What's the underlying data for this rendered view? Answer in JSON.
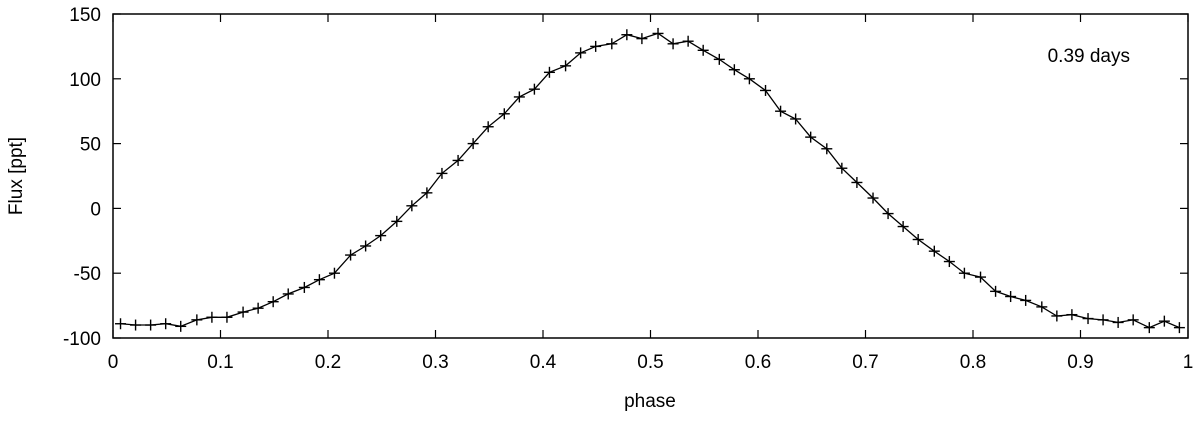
{
  "chart_data": {
    "type": "line",
    "xlabel": "phase",
    "ylabel": "Flux [ppt]",
    "annotation": "0.39 days",
    "xlim": [
      0,
      1
    ],
    "ylim": [
      -100,
      150
    ],
    "xticks": [
      0,
      0.1,
      0.2,
      0.3,
      0.4,
      0.5,
      0.6,
      0.7,
      0.8,
      0.9,
      1
    ],
    "xtick_labels": [
      "0",
      "0.1",
      "0.2",
      "0.3",
      "0.4",
      "0.5",
      "0.6",
      "0.7",
      "0.8",
      "0.9",
      "1"
    ],
    "yticks": [
      -100,
      -50,
      0,
      50,
      100,
      150
    ],
    "ytick_labels": [
      "-100",
      "-50",
      "0",
      "50",
      "100",
      "150"
    ],
    "grid": false,
    "series": [
      {
        "marker": "plus",
        "color": "#000000",
        "x": [
          0.007,
          0.021,
          0.035,
          0.049,
          0.063,
          0.078,
          0.092,
          0.106,
          0.121,
          0.135,
          0.149,
          0.163,
          0.178,
          0.192,
          0.206,
          0.221,
          0.235,
          0.249,
          0.264,
          0.278,
          0.292,
          0.306,
          0.321,
          0.335,
          0.349,
          0.364,
          0.378,
          0.392,
          0.406,
          0.421,
          0.435,
          0.449,
          0.464,
          0.478,
          0.492,
          0.507,
          0.521,
          0.535,
          0.549,
          0.564,
          0.578,
          0.592,
          0.607,
          0.621,
          0.635,
          0.649,
          0.664,
          0.678,
          0.692,
          0.707,
          0.721,
          0.735,
          0.749,
          0.764,
          0.778,
          0.792,
          0.807,
          0.821,
          0.835,
          0.849,
          0.864,
          0.878,
          0.892,
          0.907,
          0.921,
          0.935,
          0.949,
          0.964,
          0.978,
          0.992
        ],
        "y": [
          -89,
          -90,
          -90,
          -89,
          -91,
          -86,
          -84,
          -84,
          -80,
          -77,
          -72,
          -66,
          -61,
          -55,
          -50,
          -36,
          -29,
          -21,
          -10,
          2,
          12,
          27,
          37,
          50,
          63,
          73,
          86,
          92,
          105,
          110,
          120,
          125,
          127,
          134,
          131,
          135,
          127,
          129,
          122,
          115,
          107,
          100,
          91,
          75,
          69,
          55,
          46,
          31,
          20,
          8,
          -4,
          -14,
          -24,
          -33,
          -41,
          -50,
          -53,
          -64,
          -68,
          -71,
          -76,
          -83,
          -82,
          -85,
          -86,
          -88,
          -86,
          -92,
          -87,
          -92
        ]
      }
    ]
  }
}
